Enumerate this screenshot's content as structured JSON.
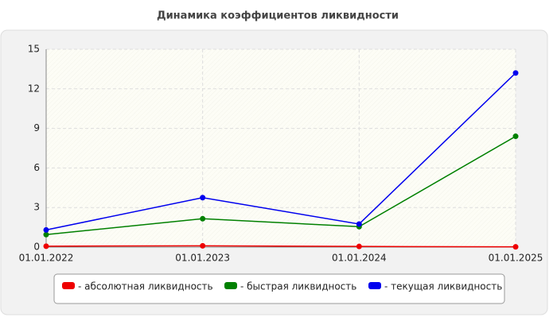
{
  "chart_data": {
    "type": "line",
    "title": "Динамика коэффициентов ликвидности",
    "categories": [
      "01.01.2022",
      "01.01.2023",
      "01.01.2024",
      "01.01.2025"
    ],
    "series": [
      {
        "name": "- абсолютная ликвидность",
        "color": "#ee0000",
        "values": [
          0.07,
          0.1,
          0.05,
          0.02
        ]
      },
      {
        "name": "- быстрая ликвидность",
        "color": "#008000",
        "values": [
          0.95,
          2.15,
          1.55,
          8.4
        ]
      },
      {
        "name": "- текущая ликвидность",
        "color": "#0000ee",
        "values": [
          1.3,
          3.75,
          1.75,
          13.2
        ]
      }
    ],
    "ylim": [
      0,
      15
    ],
    "yticks": [
      0,
      3,
      6,
      9,
      12,
      15
    ],
    "grid": true,
    "legend": "bottom"
  }
}
